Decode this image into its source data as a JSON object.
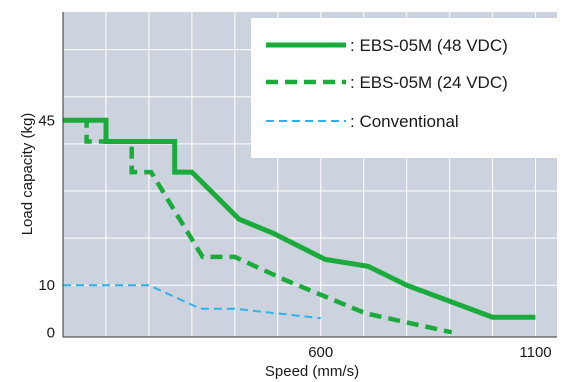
{
  "chart_data": {
    "type": "line",
    "xlabel": "Speed (mm/s)",
    "ylabel": "Load capacity (kg)",
    "xlim": [
      0,
      1150
    ],
    "ylim": [
      -1,
      68
    ],
    "x_ticks": [
      {
        "value": 600,
        "label": "600"
      },
      {
        "value": 1100,
        "label": "1100"
      }
    ],
    "y_ticks": [
      {
        "value": 0,
        "label": "0"
      },
      {
        "value": 10,
        "label": "10"
      },
      {
        "value": 45,
        "label": "45"
      }
    ],
    "grid": true,
    "legend_placement": "top-right",
    "background_color": "#cdd3de",
    "series": [
      {
        "name": ": EBS-05M (48 VDC)",
        "color": "#1aab3c",
        "style": "solid",
        "points": [
          [
            0,
            45
          ],
          [
            100,
            45
          ],
          [
            100,
            40.5
          ],
          [
            260,
            40.5
          ],
          [
            260,
            34
          ],
          [
            300,
            34
          ],
          [
            410,
            24
          ],
          [
            490,
            21
          ],
          [
            610,
            15.5
          ],
          [
            710,
            14
          ],
          [
            800,
            10
          ],
          [
            1000,
            3.2
          ],
          [
            1100,
            3.2
          ]
        ]
      },
      {
        "name": ": EBS-05M (24 VDC)",
        "color": "#1aab3c",
        "style": "dashed",
        "points": [
          [
            0,
            45
          ],
          [
            55,
            45
          ],
          [
            55,
            40.5
          ],
          [
            160,
            40.5
          ],
          [
            160,
            34
          ],
          [
            205,
            34
          ],
          [
            325,
            16
          ],
          [
            400,
            16
          ],
          [
            520,
            11
          ],
          [
            705,
            4
          ],
          [
            905,
            0
          ]
        ]
      },
      {
        "name": ": Conventional",
        "color": "#2ab4e8",
        "style": "dashed-thin",
        "points": [
          [
            0,
            10
          ],
          [
            200,
            10
          ],
          [
            320,
            5
          ],
          [
            400,
            5
          ],
          [
            600,
            3
          ]
        ]
      }
    ]
  }
}
